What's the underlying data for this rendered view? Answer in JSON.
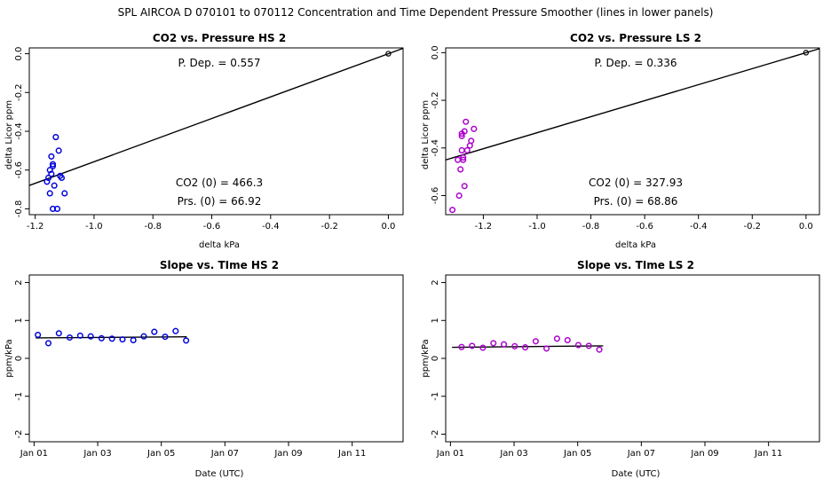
{
  "page_title": "SPL   AIRCOA D   070101 to 070112   Concentration and Time Dependent Pressure Smoother (lines in lower panels)",
  "colors": {
    "hs": "#0000dd",
    "ls": "#aa00cc",
    "line": "#000000"
  },
  "chart_data": [
    {
      "id": "p1",
      "type": "scatter",
      "title": "CO2 vs. Pressure HS 2",
      "xlabel": "delta kPa",
      "ylabel": "delta Licor ppm",
      "xlim": [
        -1.22,
        0.05
      ],
      "ylim": [
        -0.83,
        0.03
      ],
      "xticks": [
        -1.2,
        -1.0,
        -0.8,
        -0.6,
        -0.4,
        -0.2,
        0.0
      ],
      "xtick_labels": [
        "-1.2",
        "-1.0",
        "-0.8",
        "-0.6",
        "-0.4",
        "-0.2",
        "0.0"
      ],
      "yticks": [
        0.0,
        -0.2,
        -0.4,
        -0.6,
        -0.8
      ],
      "ytick_labels": [
        "0.0",
        "-0.2",
        "-0.4",
        "-0.6",
        "-0.8"
      ],
      "point_color": "hs",
      "points": [
        [
          -1.155,
          -0.64
        ],
        [
          -1.15,
          -0.6
        ],
        [
          -1.145,
          -0.62
        ],
        [
          -1.145,
          -0.53
        ],
        [
          -1.14,
          -0.58
        ],
        [
          -1.14,
          -0.57
        ],
        [
          -1.135,
          -0.68
        ],
        [
          -1.13,
          -0.43
        ],
        [
          -1.12,
          -0.5
        ],
        [
          -1.115,
          -0.63
        ],
        [
          -1.11,
          -0.64
        ],
        [
          -1.1,
          -0.72
        ],
        [
          -1.15,
          -0.72
        ],
        [
          -1.14,
          -0.8
        ],
        [
          -1.125,
          -0.8
        ],
        [
          -1.16,
          -0.66
        ]
      ],
      "reference_point": [
        0.0,
        0.0
      ],
      "fit_line": {
        "x": [
          -1.22,
          0.05
        ],
        "y": [
          -0.6794,
          0.0278
        ]
      },
      "annotations": {
        "pdep": "P. Dep. =  0.557",
        "co2": "CO2 (0) =  466.3",
        "prs": "Prs. (0) =  66.92"
      }
    },
    {
      "id": "p2",
      "type": "scatter",
      "title": "CO2 vs. Pressure LS 2",
      "xlabel": "delta kPa",
      "ylabel": "delta Licor ppm",
      "xlim": [
        -1.34,
        0.05
      ],
      "ylim": [
        -0.68,
        0.02
      ],
      "xticks": [
        -1.2,
        -1.0,
        -0.8,
        -0.6,
        -0.4,
        -0.2,
        0.0
      ],
      "xtick_labels": [
        "-1.2",
        "-1.0",
        "-0.8",
        "-0.6",
        "-0.4",
        "-0.2",
        "0.0"
      ],
      "yticks": [
        0.0,
        -0.2,
        -0.4,
        -0.6
      ],
      "ytick_labels": [
        "0.0",
        "-0.2",
        "-0.4",
        "-0.6"
      ],
      "point_color": "ls",
      "points": [
        [
          -1.315,
          -0.66
        ],
        [
          -1.29,
          -0.6
        ],
        [
          -1.295,
          -0.45
        ],
        [
          -1.285,
          -0.49
        ],
        [
          -1.28,
          -0.35
        ],
        [
          -1.28,
          -0.41
        ],
        [
          -1.275,
          -0.45
        ],
        [
          -1.27,
          -0.33
        ],
        [
          -1.27,
          -0.56
        ],
        [
          -1.265,
          -0.29
        ],
        [
          -1.26,
          -0.41
        ],
        [
          -1.25,
          -0.39
        ],
        [
          -1.245,
          -0.37
        ],
        [
          -1.235,
          -0.32
        ],
        [
          -1.28,
          -0.34
        ],
        [
          -1.275,
          -0.44
        ]
      ],
      "reference_point": [
        0.0,
        0.0
      ],
      "fit_line": {
        "x": [
          -1.34,
          0.05
        ],
        "y": [
          -0.4502,
          0.0168
        ]
      },
      "annotations": {
        "pdep": "P. Dep. =  0.336",
        "co2": "CO2 (0) =  327.93",
        "prs": "Prs. (0) =  68.86"
      }
    },
    {
      "id": "p3",
      "type": "scatter",
      "title": "Slope vs. TIme HS 2",
      "xlabel": "Date (UTC)",
      "ylabel": "ppm/kPa",
      "xlim": [
        0.85,
        12.6
      ],
      "ylim": [
        -2.2,
        2.2
      ],
      "xticks": [
        1,
        3,
        5,
        7,
        9,
        11
      ],
      "xtick_labels": [
        "Jan 01",
        "Jan 03",
        "Jan 05",
        "Jan 07",
        "Jan 09",
        "Jan 11"
      ],
      "yticks": [
        -2,
        -1,
        0,
        1,
        2
      ],
      "ytick_labels": [
        "-2",
        "-1",
        "0",
        "1",
        "2"
      ],
      "point_color": "hs",
      "points": [
        [
          1.12,
          0.62
        ],
        [
          1.45,
          0.4
        ],
        [
          1.78,
          0.66
        ],
        [
          2.12,
          0.55
        ],
        [
          2.45,
          0.6
        ],
        [
          2.78,
          0.58
        ],
        [
          3.12,
          0.53
        ],
        [
          3.45,
          0.52
        ],
        [
          3.78,
          0.5
        ],
        [
          4.12,
          0.48
        ],
        [
          4.45,
          0.58
        ],
        [
          4.78,
          0.7
        ],
        [
          5.12,
          0.57
        ],
        [
          5.45,
          0.72
        ],
        [
          5.78,
          0.47
        ]
      ],
      "fit_line": {
        "x": [
          1.05,
          5.8
        ],
        "y": [
          0.54,
          0.57
        ]
      }
    },
    {
      "id": "p4",
      "type": "scatter",
      "title": "Slope vs. TIme LS 2",
      "xlabel": "Date (UTC)",
      "ylabel": "ppm/kPa",
      "xlim": [
        0.85,
        12.6
      ],
      "ylim": [
        -2.2,
        2.2
      ],
      "xticks": [
        1,
        3,
        5,
        7,
        9,
        11
      ],
      "xtick_labels": [
        "Jan 01",
        "Jan 03",
        "Jan 05",
        "Jan 07",
        "Jan 09",
        "Jan 11"
      ],
      "yticks": [
        -2,
        -1,
        0,
        1,
        2
      ],
      "ytick_labels": [
        "-2",
        "-1",
        "0",
        "1",
        "2"
      ],
      "point_color": "ls",
      "points": [
        [
          1.35,
          0.3
        ],
        [
          1.68,
          0.33
        ],
        [
          2.02,
          0.28
        ],
        [
          2.35,
          0.4
        ],
        [
          2.68,
          0.37
        ],
        [
          3.02,
          0.32
        ],
        [
          3.35,
          0.29
        ],
        [
          3.68,
          0.45
        ],
        [
          4.02,
          0.26
        ],
        [
          4.35,
          0.52
        ],
        [
          4.68,
          0.48
        ],
        [
          5.02,
          0.35
        ],
        [
          5.35,
          0.33
        ],
        [
          5.68,
          0.23
        ]
      ],
      "fit_line": {
        "x": [
          1.05,
          5.8
        ],
        "y": [
          0.29,
          0.33
        ]
      }
    }
  ]
}
